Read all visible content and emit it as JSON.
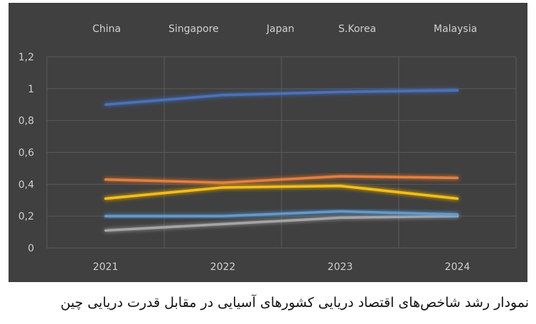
{
  "chart_data": {
    "type": "line",
    "categories": [
      "2021",
      "2022",
      "2023",
      "2024"
    ],
    "ylim": [
      0,
      1.2
    ],
    "yticks": [
      "0",
      "0,2",
      "0,4",
      "0,6",
      "0,8",
      "1",
      "1,2"
    ],
    "grid": true,
    "legend_position": "top",
    "background": "#404040",
    "series": [
      {
        "name": "China",
        "color": "#4472c4",
        "values": [
          0.9,
          0.96,
          0.98,
          0.99
        ]
      },
      {
        "name": "Singapore",
        "color": "#ed7d31",
        "values": [
          0.43,
          0.41,
          0.45,
          0.44
        ]
      },
      {
        "name": "Japan",
        "color": "#a5a5a5",
        "values": [
          0.11,
          0.15,
          0.19,
          0.2
        ]
      },
      {
        "name": "S.Korea",
        "color": "#ffc000",
        "values": [
          0.31,
          0.38,
          0.39,
          0.31
        ]
      },
      {
        "name": "Malaysia",
        "color": "#5b9bd5",
        "values": [
          0.2,
          0.2,
          0.23,
          0.21
        ]
      }
    ]
  },
  "caption": "نمودار رشد شاخص‌های اقتصاد دریایی کشورهای آسیایی در مقابل قدرت دریایی چین"
}
